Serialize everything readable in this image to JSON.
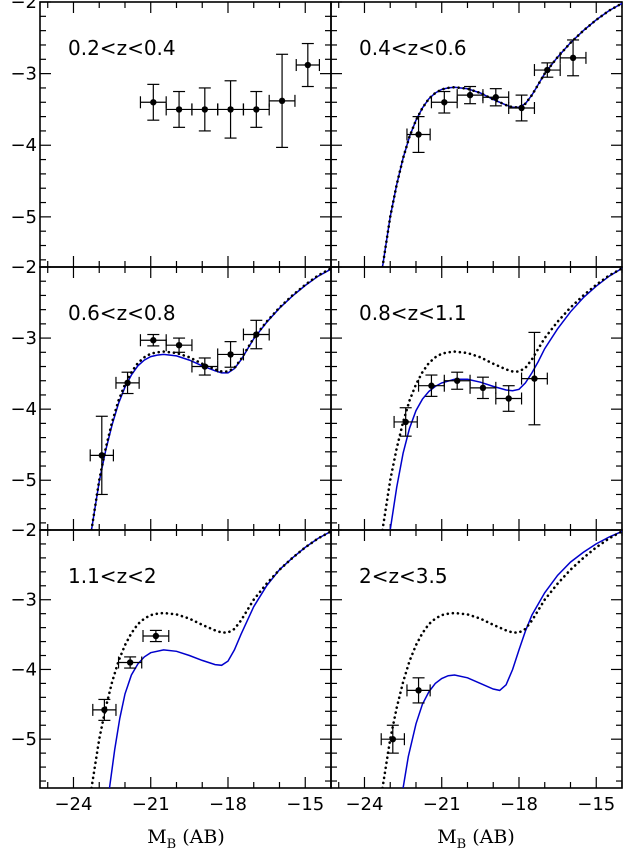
{
  "chart_data": {
    "type": "scatter",
    "layout": "3x2 grid, shared axes",
    "x_range": [
      -25.3,
      -14.0
    ],
    "y_range": [
      -5.7,
      -2.0
    ],
    "x_ticks": [
      -24,
      -21,
      -18,
      -15
    ],
    "x_tick_labels": [
      "−24",
      "−21",
      "−18",
      "−15"
    ],
    "y_ticks": [
      -3,
      -4,
      -5
    ],
    "y_tick_labels": [
      "−3",
      "−4",
      "−5"
    ],
    "y_top_tick_label": "−2",
    "xlabel_main": "M",
    "xlabel_sub": "B",
    "xlabel_unit": "(AB)",
    "colors": {
      "axes": "#000000",
      "model": "#0000cc",
      "reference": "#000000"
    },
    "panels": [
      {
        "label": "0.2<z<0.4",
        "points": [
          {
            "x": -20.9,
            "y": -3.4,
            "xerr": 0.5,
            "yerr": 0.25
          },
          {
            "x": -19.9,
            "y": -3.5,
            "xerr": 0.5,
            "yerr": 0.25
          },
          {
            "x": -18.9,
            "y": -3.5,
            "xerr": 0.5,
            "yerr": 0.3
          },
          {
            "x": -17.9,
            "y": -3.5,
            "xerr": 0.5,
            "yerr": 0.4
          },
          {
            "x": -16.9,
            "y": -3.5,
            "xerr": 0.5,
            "yerr": 0.25
          },
          {
            "x": -15.9,
            "y": -3.38,
            "xerr": 0.5,
            "yerr": 0.65
          },
          {
            "x": -14.9,
            "y": -2.88,
            "xerr": 0.45,
            "yerr": 0.3
          }
        ]
      },
      {
        "label": "0.4<z<0.6",
        "show_curves": true,
        "points": [
          {
            "x": -21.9,
            "y": -3.85,
            "xerr": 0.45,
            "yerr": 0.25
          },
          {
            "x": -20.9,
            "y": -3.4,
            "xerr": 0.5,
            "yerr": 0.15
          },
          {
            "x": -19.9,
            "y": -3.3,
            "xerr": 0.5,
            "yerr": 0.12
          },
          {
            "x": -18.9,
            "y": -3.33,
            "xerr": 0.5,
            "yerr": 0.12
          },
          {
            "x": -17.9,
            "y": -3.48,
            "xerr": 0.5,
            "yerr": 0.18
          },
          {
            "x": -16.9,
            "y": -2.95,
            "xerr": 0.5,
            "yerr": 0.1
          },
          {
            "x": -15.9,
            "y": -2.78,
            "xerr": 0.5,
            "yerr": 0.25
          }
        ]
      },
      {
        "label": "0.6<z<0.8",
        "show_curves": true,
        "points": [
          {
            "x": -22.9,
            "y": -4.65,
            "xerr": 0.45,
            "yerr": 0.55
          },
          {
            "x": -21.9,
            "y": -3.63,
            "xerr": 0.45,
            "yerr": 0.15
          },
          {
            "x": -20.9,
            "y": -3.03,
            "xerr": 0.5,
            "yerr": 0.08
          },
          {
            "x": -19.9,
            "y": -3.1,
            "xerr": 0.5,
            "yerr": 0.1
          },
          {
            "x": -18.9,
            "y": -3.4,
            "xerr": 0.5,
            "yerr": 0.12
          },
          {
            "x": -17.9,
            "y": -3.23,
            "xerr": 0.5,
            "yerr": 0.18
          },
          {
            "x": -16.9,
            "y": -2.95,
            "xerr": 0.5,
            "yerr": 0.2
          }
        ]
      },
      {
        "label": "0.8<z<1.1",
        "show_curves": true,
        "points": [
          {
            "x": -22.4,
            "y": -4.18,
            "xerr": 0.45,
            "yerr": 0.2
          },
          {
            "x": -21.4,
            "y": -3.67,
            "xerr": 0.5,
            "yerr": 0.15
          },
          {
            "x": -20.4,
            "y": -3.6,
            "xerr": 0.5,
            "yerr": 0.12
          },
          {
            "x": -19.4,
            "y": -3.7,
            "xerr": 0.5,
            "yerr": 0.15
          },
          {
            "x": -18.4,
            "y": -3.85,
            "xerr": 0.5,
            "yerr": 0.18
          },
          {
            "x": -17.4,
            "y": -3.57,
            "xerr": 0.5,
            "yerr": 0.65
          }
        ]
      },
      {
        "label": "1.1<z<2",
        "show_curves": true,
        "points": [
          {
            "x": -22.8,
            "y": -4.58,
            "xerr": 0.45,
            "yerr": 0.15
          },
          {
            "x": -21.8,
            "y": -3.9,
            "xerr": 0.45,
            "yerr": 0.08
          },
          {
            "x": -20.8,
            "y": -3.52,
            "xerr": 0.5,
            "yerr": 0.08
          }
        ]
      },
      {
        "label": "2<z<3.5",
        "show_curves": true,
        "points": [
          {
            "x": -22.9,
            "y": -5.0,
            "xerr": 0.45,
            "yerr": 0.2
          },
          {
            "x": -21.9,
            "y": -4.3,
            "xerr": 0.45,
            "yerr": 0.18
          }
        ]
      }
    ],
    "reference_curve": {
      "style": "dotted",
      "x": [
        -23.3,
        -23.0,
        -22.75,
        -22.5,
        -22.25,
        -22.0,
        -21.75,
        -21.5,
        -21.25,
        -21.0,
        -20.75,
        -20.5,
        -20.0,
        -19.5,
        -19.0,
        -18.5,
        -18.25,
        -18.0,
        -17.75,
        -17.5,
        -17.25,
        -17.0,
        -16.5,
        -16.0,
        -15.5,
        -15.0,
        -14.5,
        -14.0
      ],
      "y": [
        -5.7,
        -5.0,
        -4.55,
        -4.18,
        -3.88,
        -3.65,
        -3.48,
        -3.35,
        -3.27,
        -3.22,
        -3.2,
        -3.19,
        -3.21,
        -3.27,
        -3.36,
        -3.44,
        -3.47,
        -3.47,
        -3.42,
        -3.3,
        -3.15,
        -3.0,
        -2.77,
        -2.57,
        -2.4,
        -2.25,
        -2.12,
        -2.02
      ]
    },
    "model_curves": {
      "style": "solid",
      "0.4<z<0.6": {
        "x": [
          -23.3,
          -23.0,
          -22.75,
          -22.5,
          -22.25,
          -22.0,
          -21.75,
          -21.5,
          -21.25,
          -21.0,
          -20.75,
          -20.5,
          -20.0,
          -19.5,
          -19.0,
          -18.5,
          -18.25,
          -18.0,
          -17.75,
          -17.5,
          -17.25,
          -17.0,
          -16.5,
          -16.0,
          -15.5,
          -15.0,
          -14.5,
          -14.0
        ],
        "y": [
          -5.7,
          -5.0,
          -4.55,
          -4.18,
          -3.88,
          -3.65,
          -3.48,
          -3.35,
          -3.27,
          -3.22,
          -3.2,
          -3.19,
          -3.21,
          -3.27,
          -3.36,
          -3.44,
          -3.47,
          -3.47,
          -3.42,
          -3.3,
          -3.15,
          -3.0,
          -2.77,
          -2.57,
          -2.4,
          -2.25,
          -2.12,
          -2.02
        ]
      },
      "0.6<z<0.8": {
        "x": [
          -23.3,
          -23.0,
          -22.75,
          -22.5,
          -22.25,
          -22.0,
          -21.75,
          -21.5,
          -21.25,
          -21.0,
          -20.75,
          -20.5,
          -20.0,
          -19.5,
          -19.0,
          -18.5,
          -18.25,
          -18.0,
          -17.75,
          -17.5,
          -17.25,
          -17.0,
          -16.5,
          -16.0,
          -15.5,
          -15.0,
          -14.5,
          -14.0
        ],
        "y": [
          -5.7,
          -5.02,
          -4.58,
          -4.22,
          -3.92,
          -3.69,
          -3.52,
          -3.39,
          -3.31,
          -3.26,
          -3.24,
          -3.23,
          -3.25,
          -3.31,
          -3.39,
          -3.46,
          -3.49,
          -3.49,
          -3.43,
          -3.31,
          -3.16,
          -3.01,
          -2.78,
          -2.58,
          -2.41,
          -2.26,
          -2.13,
          -2.03
        ]
      },
      "0.8<z<1.1": {
        "x": [
          -23.0,
          -22.75,
          -22.5,
          -22.25,
          -22.0,
          -21.75,
          -21.5,
          -21.25,
          -21.0,
          -20.5,
          -20.0,
          -19.5,
          -19.0,
          -18.5,
          -18.25,
          -18.0,
          -17.75,
          -17.5,
          -17.25,
          -17.0,
          -16.5,
          -16.0,
          -15.5,
          -15.0,
          -14.5,
          -14.0
        ],
        "y": [
          -5.7,
          -5.1,
          -4.62,
          -4.27,
          -4.02,
          -3.86,
          -3.75,
          -3.68,
          -3.63,
          -3.58,
          -3.58,
          -3.62,
          -3.68,
          -3.73,
          -3.74,
          -3.72,
          -3.63,
          -3.49,
          -3.33,
          -3.15,
          -2.87,
          -2.63,
          -2.43,
          -2.27,
          -2.13,
          -2.02
        ]
      },
      "1.1<z<2": {
        "x": [
          -22.6,
          -22.4,
          -22.2,
          -22.0,
          -21.75,
          -21.5,
          -21.25,
          -21.0,
          -20.5,
          -20.0,
          -19.5,
          -19.0,
          -18.5,
          -18.25,
          -18.0,
          -17.75,
          -17.5,
          -17.0,
          -16.5,
          -16.0,
          -15.5,
          -15.0,
          -14.5,
          -14.0
        ],
        "y": [
          -5.7,
          -5.15,
          -4.7,
          -4.35,
          -4.08,
          -3.92,
          -3.82,
          -3.76,
          -3.72,
          -3.74,
          -3.8,
          -3.87,
          -3.93,
          -3.94,
          -3.88,
          -3.72,
          -3.5,
          -3.1,
          -2.8,
          -2.57,
          -2.4,
          -2.25,
          -2.12,
          -2.02
        ]
      },
      "2<z<3.5": {
        "x": [
          -22.5,
          -22.3,
          -22.0,
          -21.75,
          -21.5,
          -21.25,
          -21.0,
          -20.75,
          -20.5,
          -20.0,
          -19.5,
          -19.0,
          -18.75,
          -18.5,
          -18.25,
          -18.0,
          -17.75,
          -17.5,
          -17.0,
          -16.5,
          -16.0,
          -15.5,
          -15.0,
          -14.5,
          -14.0
        ],
        "y": [
          -5.7,
          -5.25,
          -4.78,
          -4.5,
          -4.32,
          -4.2,
          -4.13,
          -4.09,
          -4.08,
          -4.12,
          -4.2,
          -4.28,
          -4.3,
          -4.22,
          -4.0,
          -3.72,
          -3.45,
          -3.22,
          -2.9,
          -2.65,
          -2.46,
          -2.32,
          -2.2,
          -2.1,
          -2.02
        ]
      }
    }
  }
}
